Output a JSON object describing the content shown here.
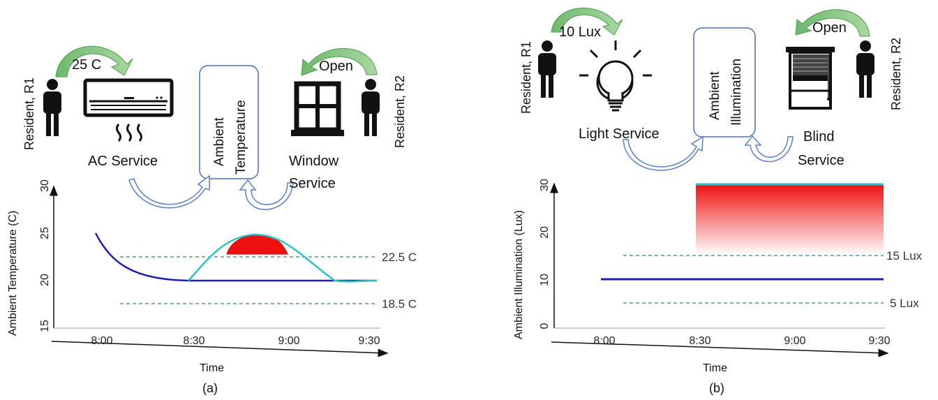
{
  "panel_a": {
    "caption": "(a)",
    "resident_left": "Resident, R1",
    "resident_right": "Resident, R2",
    "setpoint_label": "25 C",
    "window_action": "Open",
    "ac_label": "AC Service",
    "window_label_1": "Window",
    "window_label_2": "Service",
    "ambient_label_1": "Ambient",
    "ambient_label_2": "Temperature",
    "chart": {
      "ylabel": "Ambient Temperature (C)",
      "xlabel": "Time",
      "yticks": [
        "15",
        "20",
        "25",
        "30"
      ],
      "xticks": [
        "8:00",
        "8:30",
        "9:00",
        "9:30"
      ],
      "upper_bound_label": "22.5 C",
      "lower_bound_label": "18.5 C"
    }
  },
  "panel_b": {
    "caption": "(b)",
    "resident_left": "Resident, R1",
    "resident_right": "Resident, R2",
    "setpoint_label": "10 Lux",
    "blind_action": "Open",
    "light_label": "Light Service",
    "blind_label_1": "Blind",
    "blind_label_2": "Service",
    "ambient_label_1": "Ambient",
    "ambient_label_2": "Illumination",
    "chart": {
      "ylabel": "Ambient Illumination (Lux)",
      "xlabel": "Time",
      "yticks": [
        "0",
        "10",
        "20",
        "30"
      ],
      "xticks": [
        "8:00",
        "8:30",
        "9:00",
        "9:30"
      ],
      "upper_bound_label": "15 Lux",
      "lower_bound_label": "5 Lux"
    }
  },
  "chart_data": [
    {
      "type": "line",
      "title": "",
      "xlabel": "Time",
      "ylabel": "Ambient Temperature (C)",
      "ylim": [
        15,
        30
      ],
      "xlim": [
        "7:45",
        "9:30"
      ],
      "series": [
        {
          "x": [
            "8:00",
            "8:10",
            "8:20",
            "8:30",
            "8:40",
            "8:50",
            "9:00",
            "9:10",
            "9:20",
            "9:30"
          ],
          "values": [
            25,
            21.5,
            20.3,
            20,
            20,
            20,
            20,
            20,
            20,
            20
          ]
        },
        {
          "x": [
            "8:30",
            "8:40",
            "8:50",
            "9:00",
            "9:10",
            "9:20",
            "9:30"
          ],
          "values": [
            20,
            23.8,
            25,
            23.7,
            21,
            20,
            20
          ]
        }
      ],
      "thresholds": [
        22.5,
        18.5
      ],
      "highlight": {
        "x_range": [
          "8:40",
          "9:00"
        ],
        "above": 22.5
      }
    },
    {
      "type": "line",
      "title": "",
      "xlabel": "Time",
      "ylabel": "Ambient Illumination (Lux)",
      "ylim": [
        0,
        30
      ],
      "xlim": [
        "7:45",
        "9:30"
      ],
      "series": [
        {
          "x": [
            "8:00",
            "9:30"
          ],
          "values": [
            10,
            10
          ]
        },
        {
          "x": [
            "8:30",
            "9:30"
          ],
          "values": [
            30,
            30
          ]
        }
      ],
      "thresholds": [
        15,
        5
      ],
      "highlight": {
        "x_range": [
          "8:30",
          "9:30"
        ],
        "between": [
          15,
          30
        ]
      }
    }
  ],
  "colors": {
    "blue_series": "#1f1fb8",
    "cyan_series": "#29c4c4",
    "threshold": "#2e8b57",
    "violation": "#ee1111",
    "arrow_green": "#7cc47c",
    "arrow_blue": "#5a7fc4",
    "box_border": "#4a6fb0"
  }
}
